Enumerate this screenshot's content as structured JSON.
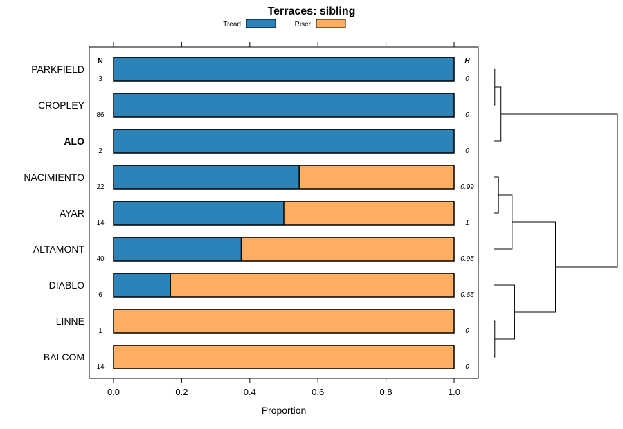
{
  "chart_data": {
    "type": "bar",
    "subtype": "stacked-horizontal-proportion",
    "title": "Terraces: sibling",
    "xlabel": "Proportion",
    "ylabel": "",
    "xlim": [
      0,
      1
    ],
    "xticks": [
      "0.0",
      "0.2",
      "0.4",
      "0.6",
      "0.8",
      "1.0"
    ],
    "xtick_values": [
      0,
      0.2,
      0.4,
      0.6,
      0.8,
      1.0
    ],
    "legend": {
      "placement": "top-center",
      "entries": [
        "Tread",
        "Riser"
      ]
    },
    "column_headers": {
      "n": "N",
      "h": "H"
    },
    "categories": [
      "PARKFIELD",
      "CROPLEY",
      "ALO",
      "NACIMIENTO",
      "AYAR",
      "ALTAMONT",
      "DIABLO",
      "LINNE",
      "BALCOM"
    ],
    "highlight": "ALO",
    "series": [
      {
        "name": "Tread",
        "color": "#2b83ba",
        "values": [
          1.0,
          1.0,
          1.0,
          0.545,
          0.5,
          0.375,
          0.167,
          0.0,
          0.0
        ]
      },
      {
        "name": "Riser",
        "color": "#fdae61",
        "values": [
          0.0,
          0.0,
          0.0,
          0.455,
          0.5,
          0.625,
          0.833,
          1.0,
          1.0
        ]
      }
    ],
    "n_values": [
      "3",
      "86",
      "2",
      "22",
      "14",
      "40",
      "6",
      "1",
      "14"
    ],
    "h_values": [
      "0",
      "0",
      "0",
      "0.99",
      "1",
      "0.95",
      "0.65",
      "0",
      "0"
    ],
    "dendrogram": {
      "leaves": [
        "PARKFIELD",
        "CROPLEY",
        "ALO",
        "NACIMIENTO",
        "AYAR",
        "ALTAMONT",
        "DIABLO",
        "LINNE",
        "BALCOM"
      ],
      "merges": [
        {
          "a": "PARKFIELD",
          "b": "CROPLEY",
          "height": 0.01
        },
        {
          "a": "PARKFIELD+CROPLEY",
          "b": "ALO",
          "height": 0.06
        },
        {
          "a": "NACIMIENTO",
          "b": "AYAR",
          "height": 0.04
        },
        {
          "a": "NACIMIENTO+AYAR",
          "b": "ALTAMONT",
          "height": 0.15
        },
        {
          "a": "LINNE",
          "b": "BALCOM",
          "height": 0.01
        },
        {
          "a": "DIABLO",
          "b": "LINNE+BALCOM",
          "height": 0.17
        },
        {
          "a": "NACIMIENTO+AYAR+ALTAMONT",
          "b": "DIABLO+LINNE+BALCOM",
          "height": 0.5
        },
        {
          "a": "PARKFIELD+CROPLEY+ALO",
          "b": "REST",
          "height": 1.0
        }
      ]
    }
  }
}
